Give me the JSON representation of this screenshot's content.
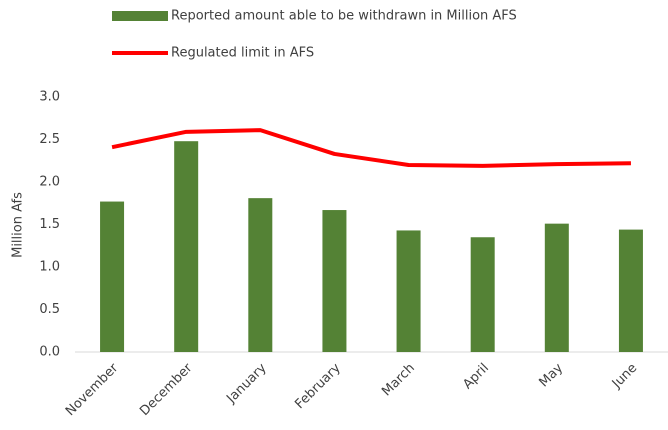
{
  "chart_data": {
    "type": "bar",
    "y_label": "Million Afs",
    "categories": [
      "November",
      "December",
      "January",
      "February",
      "March",
      "April",
      "May",
      "June"
    ],
    "series": [
      {
        "name": "Reported amount able to be withdrawn in Million AFS",
        "type": "bar",
        "color": "#548235",
        "values": [
          1.77,
          2.48,
          1.81,
          1.67,
          1.43,
          1.35,
          1.51,
          1.44
        ]
      },
      {
        "name": "Regulated limit in AFS",
        "type": "line",
        "color": "#ff0000",
        "values": [
          2.41,
          2.59,
          2.61,
          2.33,
          2.2,
          2.19,
          2.21,
          2.22
        ]
      }
    ],
    "ylim": [
      0,
      3
    ],
    "yticks": [
      {
        "value": 0,
        "label": "0.0"
      },
      0.5,
      {
        "value": 1,
        "label": "1.0"
      },
      1.5,
      {
        "value": 2,
        "label": "2.0"
      },
      2.5,
      {
        "value": 3,
        "label": "3.0"
      }
    ],
    "grid": false
  }
}
